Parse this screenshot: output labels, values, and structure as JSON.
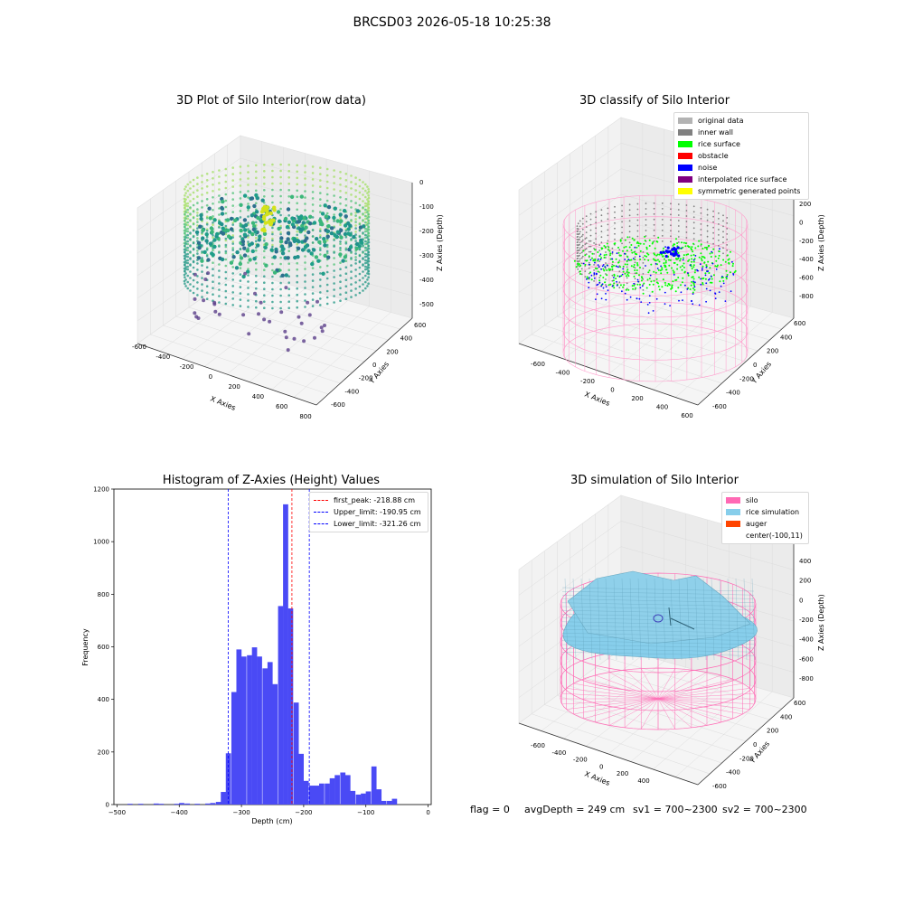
{
  "suptitle": "BRCSD03 2026-05-18 10:25:38",
  "colors": {
    "original_data": "#b3b3b3",
    "inner_wall": "#808080",
    "rice_surface": "#00ff00",
    "obstacle": "#ff0000",
    "noise": "#0000ff",
    "interpolated": "#800080",
    "symmetric": "#ffff00",
    "silo": "#ff69b4",
    "rice_sim": "#87ceeb",
    "auger": "#ff4500",
    "hist_bar": "#4a4af5"
  },
  "chart_data": [
    {
      "type": "scatter",
      "id": "raw",
      "title": "3D Plot of Silo Interior(row data)",
      "xlabel": "X Axies",
      "ylabel": "Y Axies",
      "zlabel": "Z Axies (Depth)",
      "x_ticks": [
        "-600",
        "-400",
        "-200",
        "0",
        "200",
        "400",
        "600",
        "800"
      ],
      "y_ticks": [
        "600",
        "400",
        "200",
        "0",
        "-200",
        "-400",
        "-600"
      ],
      "z_ticks": [
        "0",
        "-100",
        "-200",
        "-300",
        "-400",
        "-500"
      ]
    },
    {
      "type": "scatter",
      "id": "classify",
      "title": "3D classify of Silo Interior",
      "xlabel": "X Axies",
      "ylabel": "Y Axies",
      "zlabel": "Z Axies (Depth)",
      "x_ticks": [
        "-600",
        "-400",
        "-200",
        "0",
        "200",
        "400",
        "600"
      ],
      "y_ticks": [
        "600",
        "400",
        "200",
        "0",
        "-200",
        "-400",
        "-600"
      ],
      "z_ticks": [
        "200",
        "0",
        "-200",
        "-400",
        "-600",
        "-800"
      ],
      "legend": [
        "original data",
        "inner wall",
        "rice surface",
        "obstacle",
        "noise",
        "interpolated rice surface",
        "symmetric generated points"
      ]
    },
    {
      "type": "bar",
      "id": "hist",
      "title": "Histogram of Z-Axies (Height) Values",
      "xlabel": "Depth (cm)",
      "ylabel": "Frequency",
      "xlim": [
        -505,
        5
      ],
      "ylim": [
        0,
        1200
      ],
      "x_ticks": [
        -500,
        -400,
        -300,
        -200,
        -100,
        0
      ],
      "y_ticks": [
        0,
        200,
        400,
        600,
        800,
        1000,
        1200
      ],
      "bin_width": 8.3,
      "bins": [
        {
          "x": -479,
          "y": 3
        },
        {
          "x": -462,
          "y": 3
        },
        {
          "x": -437,
          "y": 4
        },
        {
          "x": -429,
          "y": 3
        },
        {
          "x": -404,
          "y": 3
        },
        {
          "x": -396,
          "y": 6
        },
        {
          "x": -387,
          "y": 4
        },
        {
          "x": -371,
          "y": 3
        },
        {
          "x": -354,
          "y": 4
        },
        {
          "x": -346,
          "y": 6
        },
        {
          "x": -337,
          "y": 10
        },
        {
          "x": -329,
          "y": 48
        },
        {
          "x": -321,
          "y": 195
        },
        {
          "x": -312,
          "y": 428
        },
        {
          "x": -304,
          "y": 590
        },
        {
          "x": -296,
          "y": 563
        },
        {
          "x": -287,
          "y": 568
        },
        {
          "x": -279,
          "y": 598
        },
        {
          "x": -271,
          "y": 563
        },
        {
          "x": -262,
          "y": 518
        },
        {
          "x": -254,
          "y": 542
        },
        {
          "x": -246,
          "y": 458
        },
        {
          "x": -237,
          "y": 755
        },
        {
          "x": -229,
          "y": 1142
        },
        {
          "x": -221,
          "y": 746
        },
        {
          "x": -212,
          "y": 388
        },
        {
          "x": -204,
          "y": 193
        },
        {
          "x": -196,
          "y": 90
        },
        {
          "x": -187,
          "y": 72
        },
        {
          "x": -179,
          "y": 72
        },
        {
          "x": -171,
          "y": 80
        },
        {
          "x": -162,
          "y": 80
        },
        {
          "x": -154,
          "y": 100
        },
        {
          "x": -146,
          "y": 112
        },
        {
          "x": -137,
          "y": 122
        },
        {
          "x": -129,
          "y": 112
        },
        {
          "x": -121,
          "y": 52
        },
        {
          "x": -112,
          "y": 38
        },
        {
          "x": -104,
          "y": 42
        },
        {
          "x": -96,
          "y": 50
        },
        {
          "x": -87,
          "y": 145
        },
        {
          "x": -79,
          "y": 58
        },
        {
          "x": -71,
          "y": 14
        },
        {
          "x": -62,
          "y": 14
        },
        {
          "x": -54,
          "y": 22
        }
      ],
      "lines": [
        {
          "label": "first_peak: -218.88 cm",
          "x": -218.88,
          "color": "#ff0000"
        },
        {
          "label": "Upper_limit: -190.95 cm",
          "x": -190.95,
          "color": "#0000ff"
        },
        {
          "label": "Lower_limit: -321.26 cm",
          "x": -321.26,
          "color": "#0000ff"
        }
      ]
    },
    {
      "type": "scatter",
      "id": "sim",
      "title": "3D simulation of Silo Interior",
      "xlabel": "X Axies",
      "ylabel": "Y Axies",
      "zlabel": "Z Axies (Depth)",
      "x_ticks": [
        "-600",
        "-400",
        "-200",
        "0",
        "200",
        "400"
      ],
      "y_ticks": [
        "600",
        "400",
        "200",
        "0",
        "-200",
        "-400",
        "-600"
      ],
      "z_ticks": [
        "400",
        "200",
        "0",
        "-200",
        "-400",
        "-600",
        "-800"
      ],
      "legend": [
        "silo",
        "rice simulation",
        "auger",
        "center(-100,11)"
      ]
    }
  ],
  "footer": {
    "flag": "flag = 0",
    "avgDepth": "avgDepth = 249 cm",
    "sv1": "sv1 = 700~2300",
    "sv2": "sv2 = 700~2300"
  }
}
